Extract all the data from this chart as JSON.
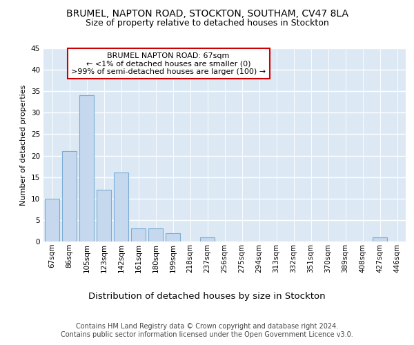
{
  "title1": "BRUMEL, NAPTON ROAD, STOCKTON, SOUTHAM, CV47 8LA",
  "title2": "Size of property relative to detached houses in Stockton",
  "xlabel": "Distribution of detached houses by size in Stockton",
  "ylabel": "Number of detached properties",
  "categories": [
    "67sqm",
    "86sqm",
    "105sqm",
    "123sqm",
    "142sqm",
    "161sqm",
    "180sqm",
    "199sqm",
    "218sqm",
    "237sqm",
    "256sqm",
    "275sqm",
    "294sqm",
    "313sqm",
    "332sqm",
    "351sqm",
    "370sqm",
    "389sqm",
    "408sqm",
    "427sqm",
    "446sqm"
  ],
  "values": [
    10,
    21,
    34,
    12,
    16,
    3,
    3,
    2,
    0,
    1,
    0,
    0,
    0,
    0,
    0,
    0,
    0,
    0,
    0,
    1,
    0
  ],
  "bar_color": "#c5d8ee",
  "bar_edge_color": "#7aacd4",
  "annotation_text": "BRUMEL NAPTON ROAD: 67sqm\n← <1% of detached houses are smaller (0)\n>99% of semi-detached houses are larger (100) →",
  "annotation_box_facecolor": "#ffffff",
  "annotation_box_edgecolor": "#cc0000",
  "footer_text": "Contains HM Land Registry data © Crown copyright and database right 2024.\nContains public sector information licensed under the Open Government Licence v3.0.",
  "ylim": [
    0,
    45
  ],
  "fig_background_color": "#ffffff",
  "plot_background_color": "#dce9f5",
  "grid_color": "#ffffff",
  "title1_fontsize": 10,
  "title2_fontsize": 9,
  "xlabel_fontsize": 9.5,
  "ylabel_fontsize": 8,
  "tick_fontsize": 7.5,
  "footer_fontsize": 7,
  "annotation_fontsize": 8
}
